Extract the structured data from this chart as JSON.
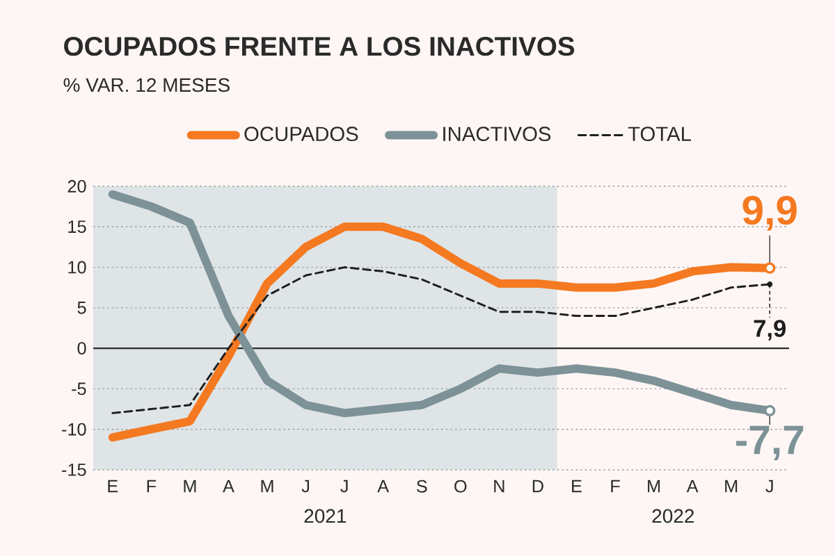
{
  "chart_data": {
    "type": "line",
    "title": "OCUPADOS FRENTE A LOS INACTIVOS",
    "subtitle": "% VAR. 12 MESES",
    "categories": [
      "E",
      "F",
      "M",
      "A",
      "M",
      "J",
      "J",
      "A",
      "S",
      "O",
      "N",
      "D",
      "E",
      "F",
      "M",
      "A",
      "M",
      "J"
    ],
    "ylim": [
      -15,
      20
    ],
    "yticks": [
      -15,
      -10,
      -5,
      0,
      5,
      10,
      15,
      20
    ],
    "grid": "y",
    "legend": "top",
    "bands": [
      {
        "axis": "x",
        "from": "E",
        "to": "D",
        "color": "#dfe4e6"
      }
    ],
    "ref_lines": [
      {
        "axis": "y",
        "value": 0,
        "color": "#2a2a2a"
      }
    ],
    "annotations": [
      "2021",
      "2022"
    ],
    "series": [
      {
        "name": "OCUPADOS",
        "color": "#f47920",
        "line_style": "solid",
        "values": [
          -11,
          -10,
          -9,
          -1,
          8,
          12.5,
          15,
          15,
          13.5,
          10.5,
          8,
          8,
          7.5,
          7.5,
          8,
          9.5,
          10,
          9.9
        ],
        "value_labels": [
          null,
          null,
          null,
          null,
          null,
          null,
          null,
          null,
          null,
          null,
          null,
          null,
          null,
          null,
          null,
          null,
          null,
          "9,9"
        ]
      },
      {
        "name": "INACTIVOS",
        "color": "#7d9297",
        "line_style": "solid",
        "values": [
          19,
          17.5,
          15.5,
          4,
          -4,
          -7,
          -8,
          -7.5,
          -7,
          -5,
          -2.5,
          -3,
          -2.5,
          -3,
          -4,
          -5.5,
          -7,
          -7.7
        ],
        "value_labels": [
          null,
          null,
          null,
          null,
          null,
          null,
          null,
          null,
          null,
          null,
          null,
          null,
          null,
          null,
          null,
          null,
          null,
          "-7,7"
        ]
      },
      {
        "name": "TOTAL",
        "color": "#1e1e1e",
        "line_style": "dashed",
        "values": [
          -8,
          -7.5,
          -7,
          0,
          6.5,
          9,
          10,
          9.5,
          8.5,
          6.5,
          4.5,
          4.5,
          4,
          4,
          5,
          6,
          7.5,
          7.9
        ],
        "value_labels": [
          null,
          null,
          null,
          null,
          null,
          null,
          null,
          null,
          null,
          null,
          null,
          null,
          null,
          null,
          null,
          null,
          null,
          "7,9"
        ]
      }
    ]
  }
}
